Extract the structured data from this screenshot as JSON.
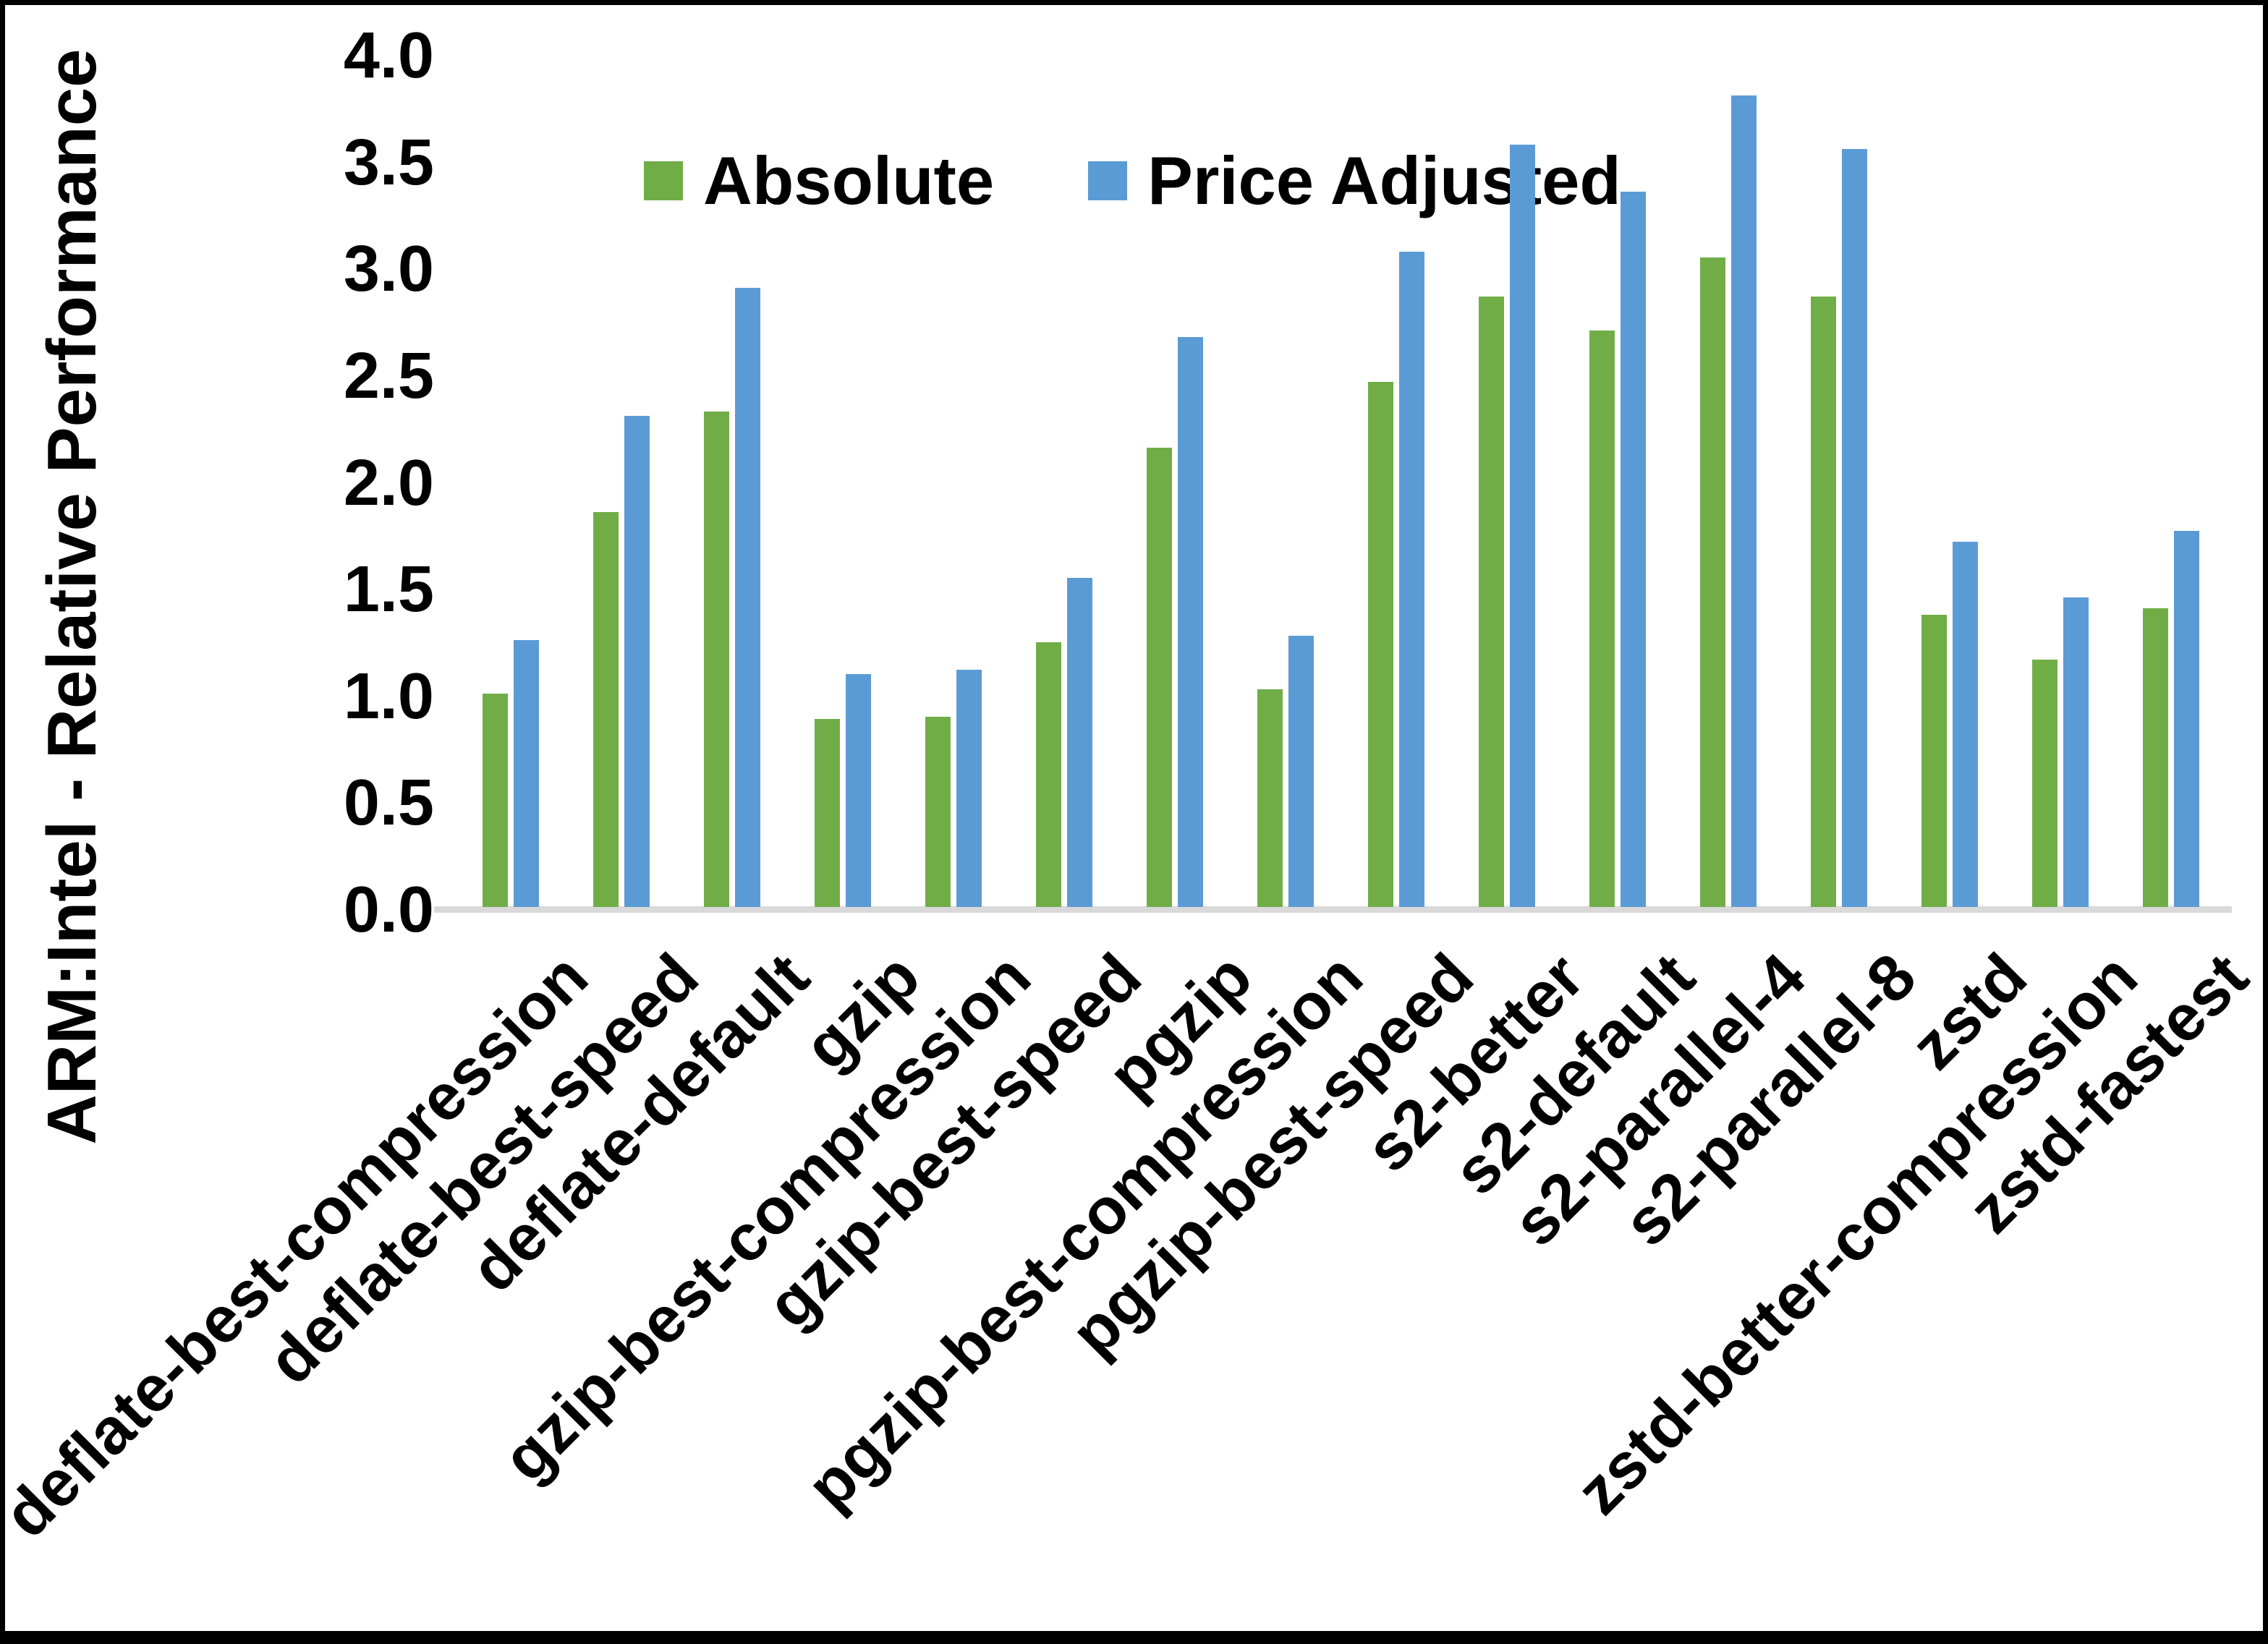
{
  "chart_data": {
    "type": "bar",
    "title": "",
    "xlabel": "",
    "ylabel": "ARM:Intel - Relative Performance",
    "ylim": [
      0.0,
      4.0
    ],
    "y_ticks": [
      0.0,
      0.5,
      1.0,
      1.5,
      2.0,
      2.5,
      3.0,
      3.5,
      4.0
    ],
    "tick_format_decimals": 1,
    "grid": false,
    "legend_position": "top-center",
    "axis_line_color": "#d9d9d9",
    "categories": [
      "deflate-best-compression",
      "deflate-best-speed",
      "deflate-default",
      "gzip",
      "gzip-best-compression",
      "gzip-best-speed",
      "pgzip",
      "pgzip-best-compression",
      "pgzip-best-speed",
      "s2-better",
      "s2-default",
      "s2-parallel-4",
      "s2-parallel-8",
      "zstd",
      "zstd-better-compression",
      "zstd-fastest"
    ],
    "series": [
      {
        "name": "Absolute",
        "color": "#70AD47",
        "values": [
          1.0,
          1.85,
          2.32,
          0.88,
          0.89,
          1.24,
          2.15,
          1.02,
          2.46,
          2.86,
          2.7,
          3.04,
          2.86,
          1.37,
          1.16,
          1.4
        ]
      },
      {
        "name": "Price Adjusted",
        "color": "#5B9BD5",
        "values": [
          1.25,
          2.3,
          2.9,
          1.09,
          1.11,
          1.54,
          2.67,
          1.27,
          3.07,
          3.57,
          3.35,
          3.8,
          3.55,
          1.71,
          1.45,
          1.76
        ]
      }
    ]
  }
}
